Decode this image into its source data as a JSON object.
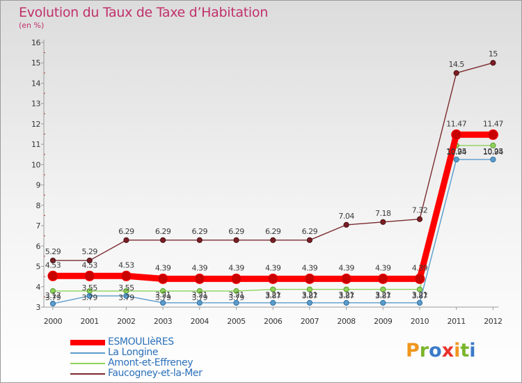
{
  "title": "Evolution du Taux de Taxe d’Habitation",
  "unit_label": "(en %)",
  "brand": "Proxiti",
  "brand_colors": [
    "#f0961e",
    "#7ab52c",
    "#3b7bc8",
    "#e8332c",
    "#f0961e",
    "#7ab52c",
    "#3b7bc8"
  ],
  "chart_data": {
    "type": "line",
    "title": "Evolution du Taux de Taxe d’Habitation",
    "ylabel": "(en %)",
    "xlabel": "",
    "x": [
      "2000",
      "2001",
      "2002",
      "2003",
      "2004",
      "2005",
      "2006",
      "2007",
      "2008",
      "2009",
      "2010",
      "2011",
      "2012"
    ],
    "ylim": [
      3,
      16
    ],
    "yticks": [
      "3",
      "4",
      "5",
      "6",
      "7",
      "8",
      "9",
      "10",
      "11",
      "12",
      "13",
      "14",
      "15",
      "16"
    ],
    "grid": false,
    "legend_position": "bottom-left",
    "series": [
      {
        "name": "Faucogney-et-la-Mer",
        "color": "#7a2a2e",
        "values": [
          5.29,
          5.29,
          6.29,
          6.29,
          6.29,
          6.29,
          6.29,
          6.29,
          7.04,
          7.18,
          7.32,
          14.5,
          15
        ],
        "labels": [
          "5.29",
          "5.29",
          "6.29",
          "6.29",
          "6.29",
          "6.29",
          "6.29",
          "6.29",
          "7.04",
          "7.18",
          "7.32",
          "14.5",
          "15"
        ]
      },
      {
        "name": "Amont-et-Effreney",
        "color": "#8ed35a",
        "values": [
          3.79,
          3.79,
          3.79,
          3.79,
          3.79,
          3.79,
          3.87,
          3.87,
          3.87,
          3.87,
          3.87,
          10.94,
          10.94
        ],
        "labels": [
          "3.79",
          "3.79",
          "3.79",
          "3.79",
          "3.79",
          "3.79",
          "3.87",
          "3.87",
          "3.87",
          "3.87",
          "3.87",
          "10.94",
          "10.94"
        ]
      },
      {
        "name": "La Longine",
        "color": "#5a9ccc",
        "values": [
          3.17,
          3.55,
          3.55,
          3.21,
          3.21,
          3.21,
          3.21,
          3.21,
          3.21,
          3.21,
          3.21,
          10.25,
          10.25
        ],
        "labels": [
          "3.17",
          "3.55",
          "3.55",
          "3.21",
          "3.21",
          "3.21",
          "3.21",
          "3.21",
          "3.21",
          "3.21",
          "3.21",
          "10.25",
          "10.25"
        ]
      },
      {
        "name": "ESMOULIèRES",
        "color": "#ff0000",
        "values": [
          4.53,
          4.53,
          4.53,
          4.39,
          4.39,
          4.39,
          4.39,
          4.39,
          4.39,
          4.39,
          4.39,
          11.47,
          11.47
        ],
        "labels": [
          "4.53",
          "4.53",
          "4.53",
          "4.39",
          "4.39",
          "4.39",
          "4.39",
          "4.39",
          "4.39",
          "4.39",
          "4.39",
          "11.47",
          "11.47"
        ]
      }
    ],
    "legend_order": [
      "ESMOULIèRES",
      "La Longine",
      "Amont-et-Effreney",
      "Faucogney-et-la-Mer"
    ]
  }
}
